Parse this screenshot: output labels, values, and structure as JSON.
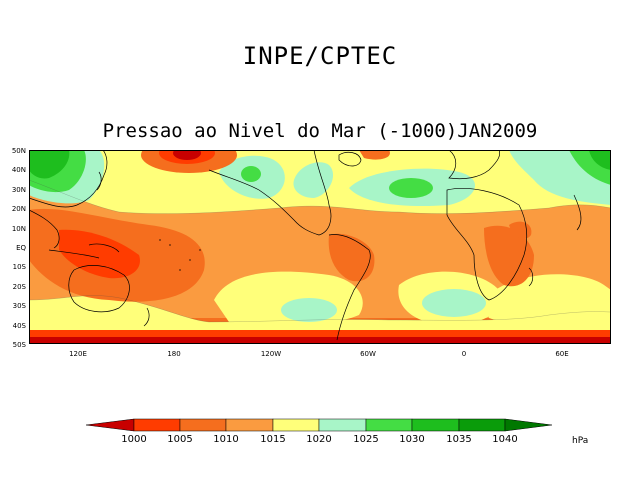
{
  "header": {
    "organization": "INPE/CPTEC",
    "map_title": "Pressao ao Nivel do Mar (-1000)JAN2009"
  },
  "axes": {
    "lat_labels": [
      "50N",
      "40N",
      "30N",
      "20N",
      "10N",
      "EQ",
      "10S",
      "20S",
      "30S",
      "40S",
      "50S"
    ],
    "lon_labels": [
      "120E",
      "180",
      "120W",
      "60W",
      "0",
      "60E"
    ]
  },
  "colorbar": {
    "levels": [
      "1000",
      "1005",
      "1010",
      "1015",
      "1020",
      "1025",
      "1030",
      "1035",
      "1040"
    ],
    "colors": [
      "#c80000",
      "#ff3c00",
      "#f56e1e",
      "#fa9b40",
      "#ffff7a",
      "#a8f5c8",
      "#44dd44",
      "#1ebe1e",
      "#0a9c0a",
      "#007800"
    ],
    "units": "hPa"
  },
  "map": {
    "domain": "Global 50S-50N",
    "variable": "Sea level pressure anomaly above 1000 hPa",
    "colors": {
      "ocean_base": "#fcb85a",
      "land_base": "#fa9b40",
      "coast": "#000000"
    }
  }
}
